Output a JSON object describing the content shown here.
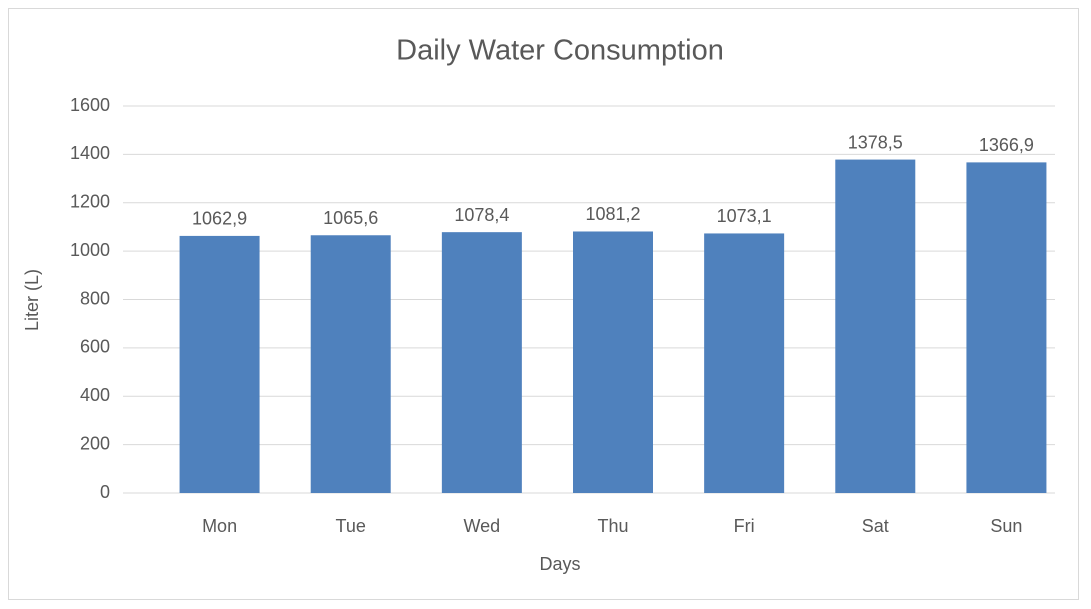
{
  "chart_data": {
    "type": "bar",
    "title": "Daily Water Consumption",
    "x_label": "Days",
    "y_label": "Liter (L)",
    "categories": [
      "Mon",
      "Tue",
      "Wed",
      "Thu",
      "Fri",
      "Sat",
      "Sun"
    ],
    "values": [
      1062.9,
      1065.6,
      1078.4,
      1081.2,
      1073.1,
      1378.5,
      1366.9
    ],
    "value_labels": [
      "1062,9",
      "1065,6",
      "1078,4",
      "1081,2",
      "1073,1",
      "1378,5",
      "1366,9"
    ],
    "color": "#4f81bd",
    "ylim": [
      0,
      1600
    ],
    "yticks": [
      0,
      200,
      400,
      600,
      800,
      1000,
      1200,
      1400,
      1600
    ],
    "grid": true
  }
}
